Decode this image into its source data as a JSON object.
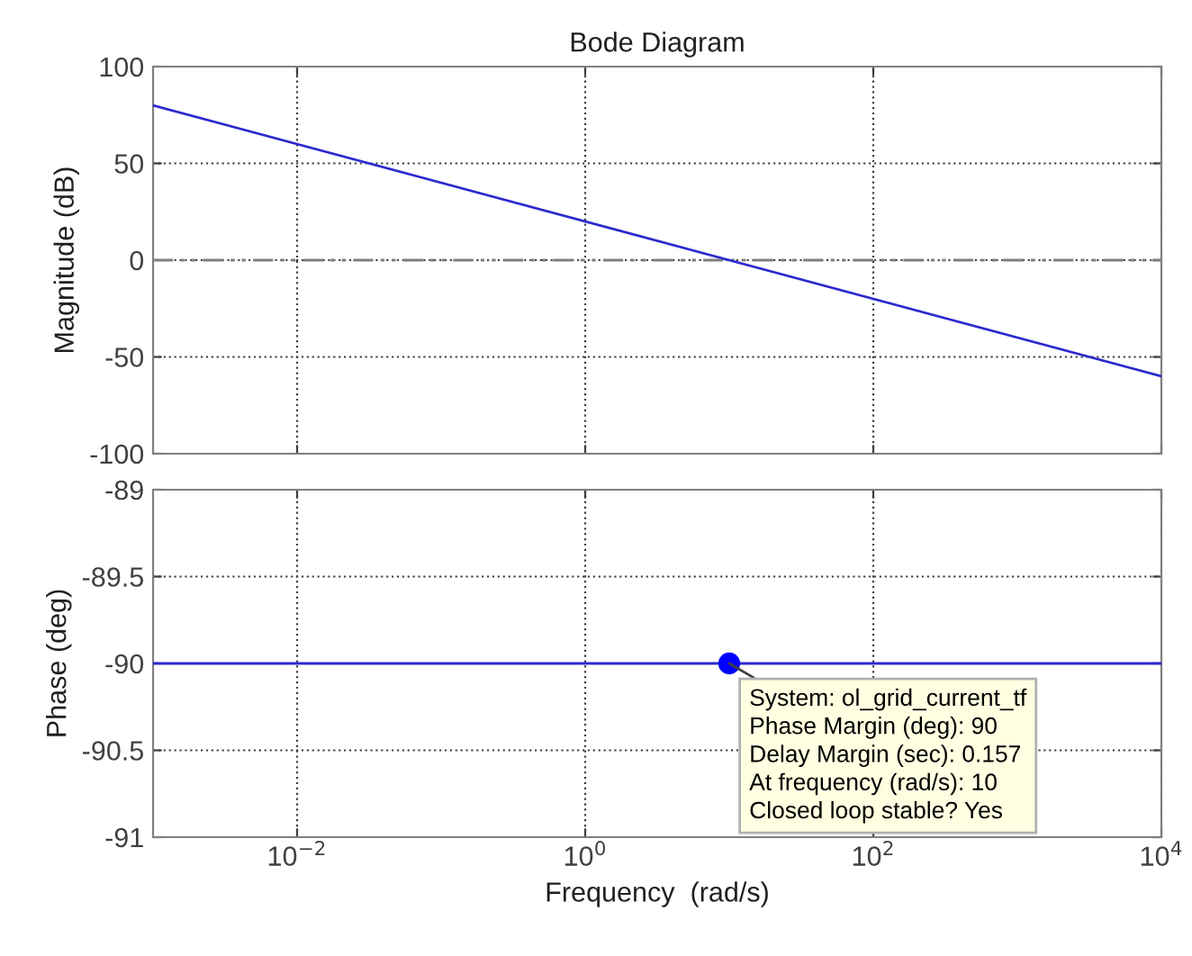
{
  "chart_data": [
    {
      "type": "line",
      "title": "Bode Diagram",
      "ylabel": "Magnitude (dB)",
      "x": [
        0.001,
        10000
      ],
      "series": [
        {
          "color": "#2a2ad0",
          "values": [
            80,
            -60
          ]
        }
      ],
      "log": "x",
      "xlim": [
        0.001,
        10000
      ],
      "xticks": [
        {
          "value": 0.01,
          "label": null
        },
        {
          "value": 1,
          "label": null
        },
        {
          "value": 100,
          "label": null
        },
        {
          "value": 10000,
          "label": null
        }
      ],
      "ylim": [
        -100,
        100
      ],
      "yticks": [
        -100,
        -50,
        0,
        50,
        100
      ],
      "grid": true,
      "tick_labels": "y",
      "ref_lines": [
        {
          "axis": "y",
          "value": 0,
          "color": "#808080",
          "line_style": "dashdot"
        }
      ]
    },
    {
      "type": "line",
      "xlabel": "Frequency  (rad/s)",
      "ylabel": "Phase (deg)",
      "series": [
        {
          "color": "#2a2ad0",
          "x": [
            0.001,
            10000
          ],
          "values": [
            -90,
            -90
          ]
        },
        {
          "type": "scatter",
          "color": "#0000ff",
          "x": [
            10
          ],
          "values": [
            -90
          ]
        }
      ],
      "log": "x",
      "xlim": [
        0.001,
        10000
      ],
      "xticks": [
        {
          "value": 0.01,
          "label": "10$^{−2}$"
        },
        {
          "value": 1,
          "label": "10$^{0}$"
        },
        {
          "value": 100,
          "label": "10$^{2}$"
        },
        {
          "value": 10000,
          "label": "10$^{4}$"
        }
      ],
      "ylim": [
        -91,
        -89
      ],
      "yticks": [
        -91,
        -90.5,
        -90,
        -89.5,
        -89
      ],
      "grid": true,
      "annotations": [
        {
          "text": "System: ol_grid_current_tf\nPhase Margin (deg): 90\nDelay Margin (sec): 0.157\nAt frequency (rad/s): 10\nClosed loop stable? Yes",
          "x": 10,
          "y": -90
        }
      ]
    }
  ]
}
